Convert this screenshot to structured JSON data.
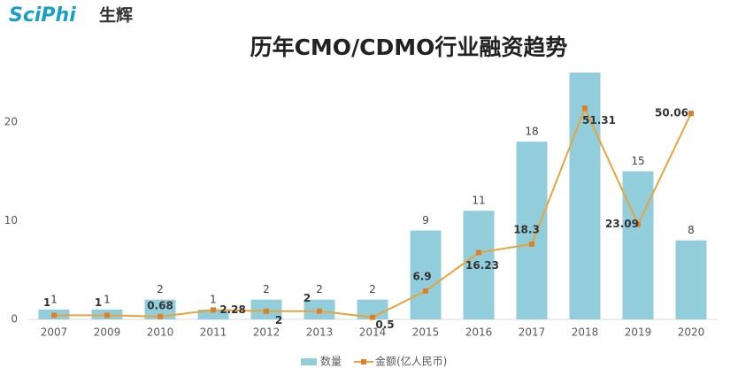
{
  "logo": {
    "brand": "SciPhi",
    "brand_cn": "生辉"
  },
  "chart_data": {
    "type": "bar-line",
    "title": "历年CMO/CDMO行业融资趋势",
    "categories": [
      "2007",
      "2009",
      "2010",
      "2011",
      "2012",
      "2013",
      "2014",
      "2015",
      "2016",
      "2017",
      "2018",
      "2019",
      "2020"
    ],
    "series": [
      {
        "name": "数量",
        "type": "bar",
        "color": "#92cddc",
        "values": [
          1,
          1,
          2,
          1,
          2,
          2,
          2,
          9,
          11,
          18,
          25,
          15,
          8
        ],
        "value_labels": [
          "1",
          "1",
          "2",
          "1",
          "2",
          "2",
          "2",
          "9",
          "11",
          "18",
          null,
          "15",
          "8"
        ]
      },
      {
        "name": "金额(亿人民币)",
        "type": "line",
        "axis": "y2",
        "color": "#e8a33c",
        "values": [
          1,
          1,
          0.68,
          2.28,
          2,
          2,
          0.5,
          6.9,
          16.23,
          18.3,
          51.31,
          23.09,
          50.06
        ],
        "value_labels": [
          "1",
          "1",
          "0.68",
          "2.28",
          "2",
          "2",
          "0.5",
          "6.9",
          "16.23",
          "18.3",
          "51.31",
          "23.09",
          "50.06"
        ]
      }
    ],
    "ylim": [
      0,
      25
    ],
    "yticks": [
      0,
      10,
      20
    ],
    "y2lim": [
      0,
      60
    ],
    "legend": "bottom"
  }
}
